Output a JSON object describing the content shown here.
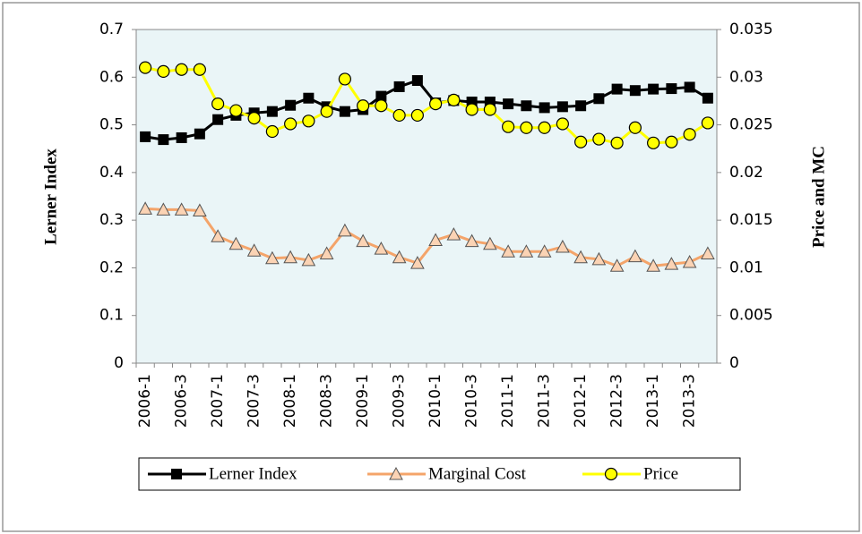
{
  "chart_data": {
    "type": "line",
    "y_label": "Lerner Index",
    "y2_label": "Price and MC",
    "categories": [
      "2006-1",
      null,
      "2006-3",
      null,
      "2007-1",
      null,
      "2007-3",
      null,
      "2008-1",
      null,
      "2008-3",
      null,
      "2009-1",
      null,
      "2009-3",
      null,
      "2010-1",
      null,
      "2010-3",
      null,
      "2011-1",
      null,
      "2011-3",
      null,
      "2012-1",
      null,
      "2012-3",
      null,
      "2013-1",
      null,
      "2013-3",
      null
    ],
    "series": [
      {
        "name": "Lerner Index",
        "color": "#000000",
        "marker": "square",
        "values": [
          0.475,
          0.469,
          0.473,
          0.481,
          0.511,
          0.52,
          0.525,
          0.528,
          0.541,
          0.556,
          0.538,
          0.528,
          0.532,
          0.56,
          0.58,
          0.593,
          0.546,
          0.551,
          0.548,
          0.548,
          0.544,
          0.54,
          0.536,
          0.538,
          0.54,
          0.555,
          0.575,
          0.572,
          0.575,
          0.576,
          0.579,
          0.556
        ]
      },
      {
        "name": "Marginal Cost",
        "color": "#f4a46a",
        "marker": "triangle",
        "axis": "y2",
        "values": [
          0.0162,
          0.0161,
          0.0161,
          0.016,
          0.0133,
          0.0125,
          0.0118,
          0.011,
          0.0111,
          0.0108,
          0.0115,
          0.0139,
          0.0128,
          0.012,
          0.0111,
          0.0105,
          0.0129,
          0.0135,
          0.0128,
          0.0125,
          0.0117,
          0.0117,
          0.0117,
          0.0122,
          0.0111,
          0.0109,
          0.0102,
          0.0112,
          0.0102,
          0.0104,
          0.0106,
          0.0115
        ]
      },
      {
        "name": "Price",
        "color": "#ffff00",
        "marker": "circle",
        "axis": "y2",
        "values": [
          0.031,
          0.0306,
          0.0308,
          0.0308,
          0.0272,
          0.0265,
          0.0257,
          0.0243,
          0.0251,
          0.0254,
          0.0264,
          0.0298,
          0.027,
          0.027,
          0.026,
          0.026,
          0.0272,
          0.0276,
          0.0266,
          0.0266,
          0.0248,
          0.0247,
          0.0247,
          0.0251,
          0.0232,
          0.0235,
          0.0231,
          0.0247,
          0.0231,
          0.0232,
          0.024,
          0.0252
        ]
      }
    ],
    "ylim": [
      0,
      0.7
    ],
    "yticks": [
      0,
      0.1,
      0.2,
      0.3,
      0.4,
      0.5,
      0.6,
      0.7
    ],
    "y2lim": [
      0,
      0.035
    ],
    "y2ticks": [
      0,
      0.005,
      0.01,
      0.015,
      0.02,
      0.025,
      0.03,
      0.035
    ],
    "grid": false,
    "legend": "bottom"
  }
}
